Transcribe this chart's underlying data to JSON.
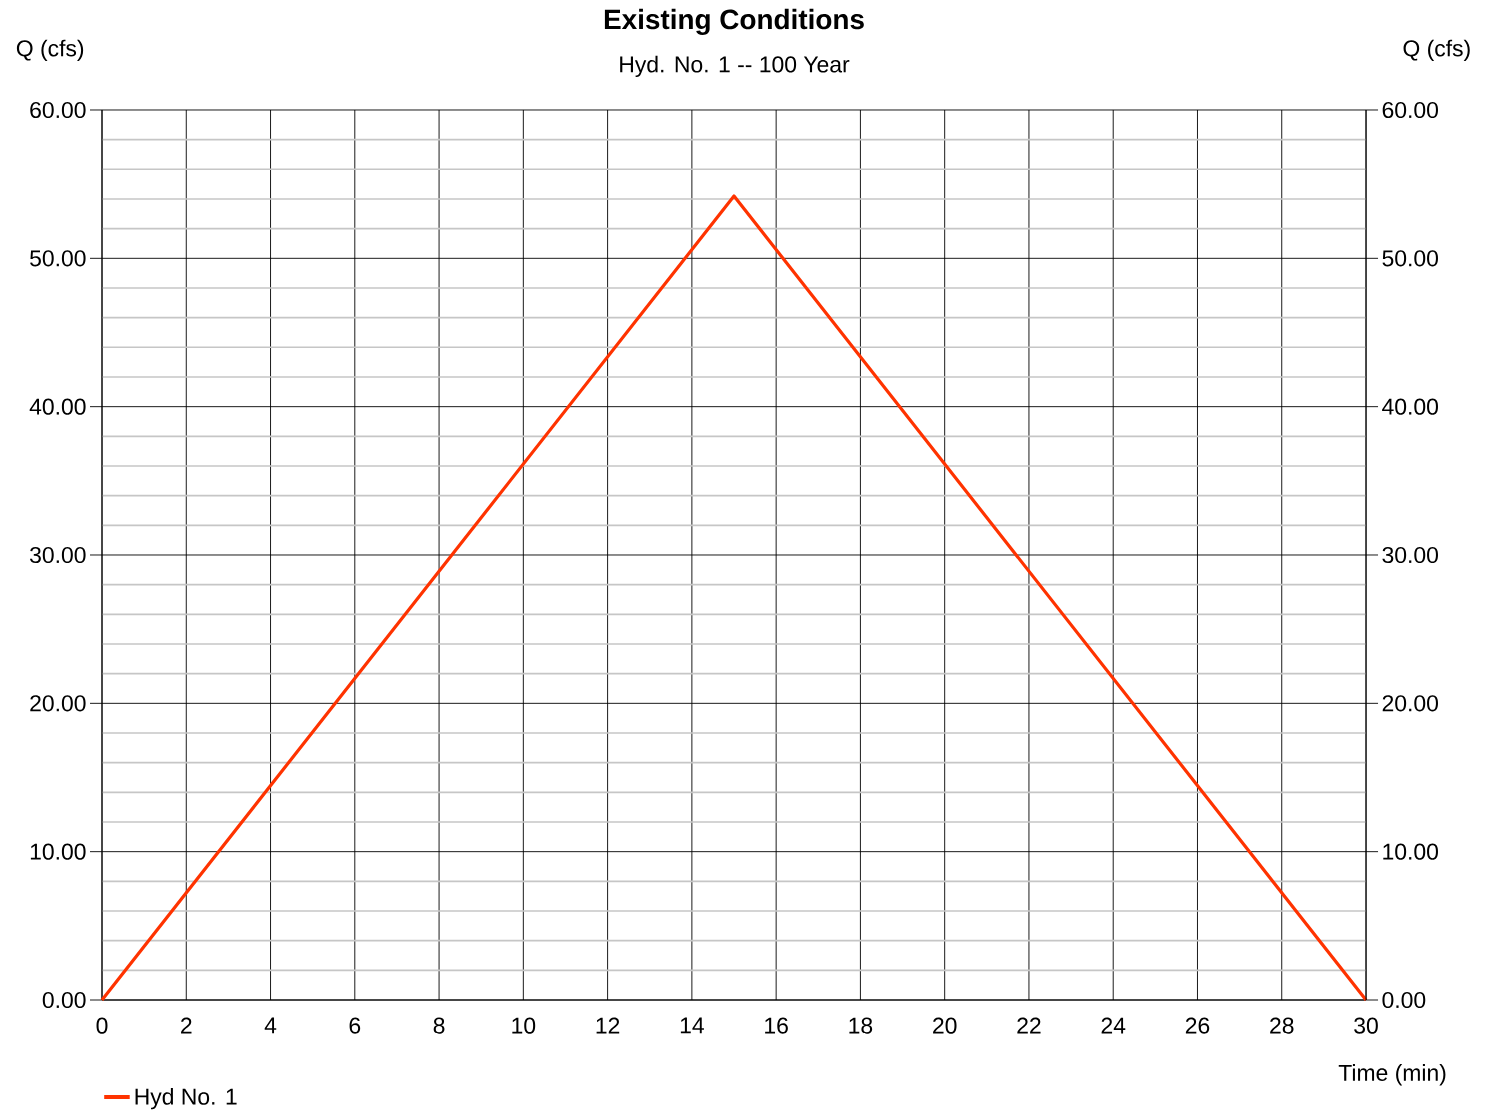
{
  "chart_data": {
    "type": "line",
    "title": "Existing Conditions",
    "subtitle": "Hyd. No. 1 -- 100 Year",
    "xlabel": "Time (min)",
    "ylabel": "Q (cfs)",
    "y2label": "Q (cfs)",
    "x": [
      0,
      15,
      30
    ],
    "series": [
      {
        "name": "Hyd No. 1",
        "color": "#ff3300",
        "values": [
          0,
          54.2,
          0
        ]
      }
    ],
    "xlim": [
      0,
      30
    ],
    "xticks": [
      0,
      2,
      4,
      6,
      8,
      10,
      12,
      14,
      16,
      18,
      20,
      22,
      24,
      26,
      28,
      30
    ],
    "ylim": [
      0,
      60
    ],
    "yticks": [
      {
        "value": 0,
        "label": "0.00"
      },
      {
        "value": 2,
        "label": null
      },
      {
        "value": 4,
        "label": null
      },
      {
        "value": 6,
        "label": null
      },
      {
        "value": 8,
        "label": null
      },
      {
        "value": 10,
        "label": "10.00"
      },
      {
        "value": 12,
        "label": null
      },
      {
        "value": 14,
        "label": null
      },
      {
        "value": 16,
        "label": null
      },
      {
        "value": 18,
        "label": null
      },
      {
        "value": 20,
        "label": "20.00"
      },
      {
        "value": 22,
        "label": null
      },
      {
        "value": 24,
        "label": null
      },
      {
        "value": 26,
        "label": null
      },
      {
        "value": 28,
        "label": null
      },
      {
        "value": 30,
        "label": "30.00"
      },
      {
        "value": 32,
        "label": null
      },
      {
        "value": 34,
        "label": null
      },
      {
        "value": 36,
        "label": null
      },
      {
        "value": 38,
        "label": null
      },
      {
        "value": 40,
        "label": "40.00"
      },
      {
        "value": 42,
        "label": null
      },
      {
        "value": 44,
        "label": null
      },
      {
        "value": 46,
        "label": null
      },
      {
        "value": 48,
        "label": null
      },
      {
        "value": 50,
        "label": "50.00"
      },
      {
        "value": 52,
        "label": null
      },
      {
        "value": 54,
        "label": null
      },
      {
        "value": 56,
        "label": null
      },
      {
        "value": 58,
        "label": null
      },
      {
        "value": 60,
        "label": "60.00"
      }
    ],
    "y2lim": [
      0,
      60
    ],
    "y2ticks": [
      {
        "value": 0,
        "label": "0.00"
      },
      {
        "value": 10,
        "label": "10.00"
      },
      {
        "value": 20,
        "label": "20.00"
      },
      {
        "value": 30,
        "label": "30.00"
      },
      {
        "value": 40,
        "label": "40.00"
      },
      {
        "value": 50,
        "label": "50.00"
      },
      {
        "value": 60,
        "label": "60.00"
      }
    ],
    "grid": true,
    "legend": "bottom left",
    "marker": "none",
    "line_style": "solid"
  }
}
